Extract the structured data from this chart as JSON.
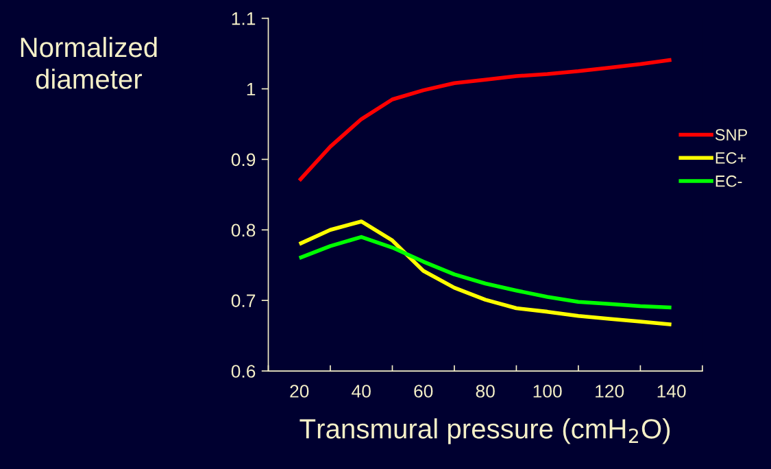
{
  "chart_data": {
    "type": "line",
    "x": [
      20,
      30,
      40,
      50,
      60,
      70,
      80,
      90,
      100,
      110,
      120,
      130,
      140
    ],
    "series": [
      {
        "name": "SNP",
        "color": "#ff0000",
        "values": [
          0.87,
          0.918,
          0.957,
          0.985,
          0.998,
          1.008,
          1.013,
          1.018,
          1.021,
          1.025,
          1.03,
          1.035,
          1.041
        ]
      },
      {
        "name": "EC+",
        "color": "#ffff00",
        "values": [
          0.78,
          0.8,
          0.812,
          0.785,
          0.742,
          0.718,
          0.701,
          0.689,
          0.684,
          0.678,
          0.674,
          0.67,
          0.666
        ]
      },
      {
        "name": "EC-",
        "color": "#00ff00",
        "values": [
          0.76,
          0.777,
          0.79,
          0.775,
          0.755,
          0.737,
          0.724,
          0.714,
          0.705,
          0.698,
          0.695,
          0.692,
          0.69
        ]
      }
    ],
    "xlabel": "Transmural pressure (cmH$_{2}$O)",
    "ylabel": "Normalized\ndiameter",
    "xlim": [
      10,
      150
    ],
    "xticks": [
      {
        "value": 10,
        "label": null
      },
      20,
      {
        "value": 30,
        "label": null
      },
      40,
      {
        "value": 50,
        "label": null
      },
      60,
      {
        "value": 70,
        "label": null
      },
      80,
      {
        "value": 90,
        "label": null
      },
      100,
      {
        "value": 110,
        "label": null
      },
      120,
      {
        "value": 130,
        "label": null
      },
      140,
      {
        "value": 150,
        "label": null
      }
    ],
    "ylim": [
      0.6,
      1.1
    ],
    "yticks": [
      0.6,
      0.7,
      0.8,
      0.9,
      1,
      1.1
    ],
    "legend": "right",
    "grid": false,
    "line_style": "solid",
    "marker": "none"
  }
}
